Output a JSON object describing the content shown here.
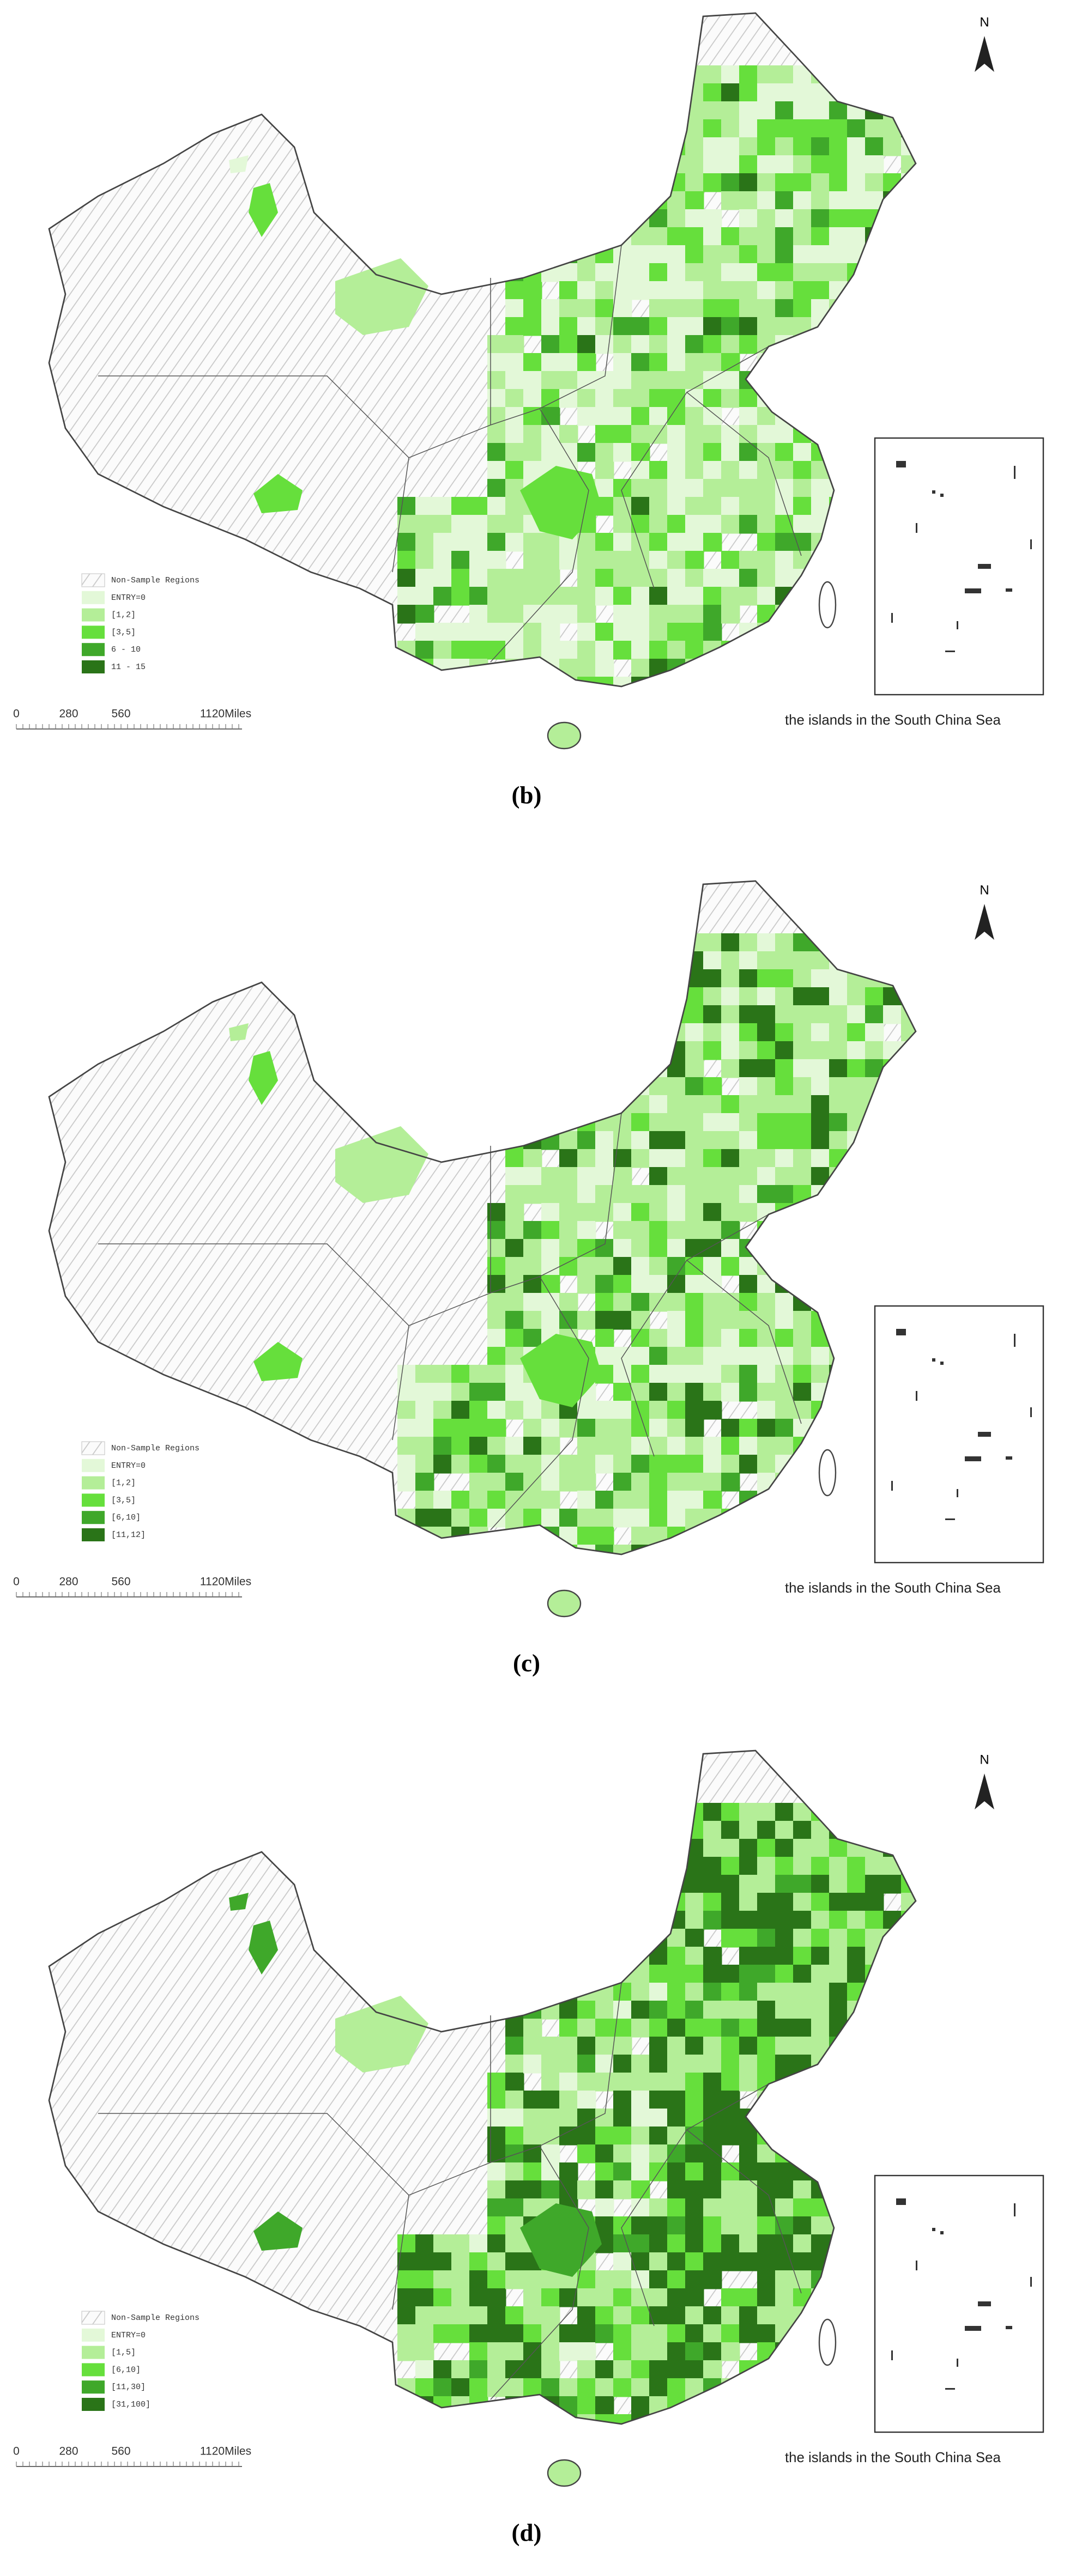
{
  "north_label": "N",
  "colors": [
    "#e3f8d8",
    "#b4ee98",
    "#66df3c",
    "#3fa82a",
    "#2a7418"
  ],
  "panels": [
    {
      "label": "(b)",
      "legend": [
        "Non-Sample Regions",
        "ENTRY=0",
        "[1,2]",
        "[3,5]",
        "6 - 10",
        "11 - 15"
      ],
      "scale": [
        "0",
        "280",
        "560",
        "1120Miles"
      ],
      "inset_caption": "the islands in the South China Sea"
    },
    {
      "label": "(c)",
      "legend": [
        "Non-Sample Regions",
        "ENTRY=0",
        "[1,2]",
        "[3,5]",
        "[6,10]",
        "[11,12]"
      ],
      "scale": [
        "0",
        "280",
        "560",
        "1120Miles"
      ],
      "inset_caption": "the islands in the South China Sea"
    },
    {
      "label": "(d)",
      "legend": [
        "Non-Sample Regions",
        "ENTRY=0",
        "[1,5]",
        "[6,10]",
        "[11,30]",
        "[31,100]"
      ],
      "scale": [
        "0",
        "280",
        "560",
        "1120Miles"
      ],
      "inset_caption": "the islands in the South China Sea"
    }
  ]
}
